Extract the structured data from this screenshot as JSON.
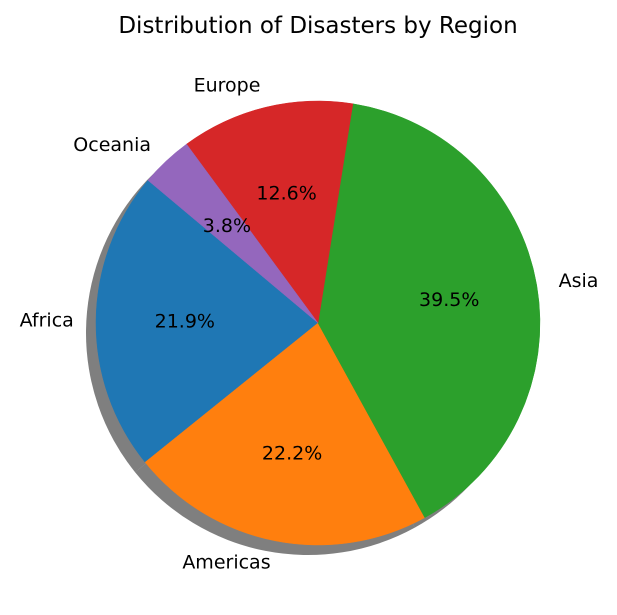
{
  "chart_data": {
    "type": "pie",
    "title": "Distribution of Disasters by Region",
    "categories": [
      "Africa",
      "Americas",
      "Asia",
      "Europe",
      "Oceania"
    ],
    "values": [
      21.9,
      22.2,
      39.5,
      12.6,
      3.8
    ],
    "value_labels": [
      "21.9%",
      "22.2%",
      "39.5%",
      "12.6%",
      "3.8%"
    ],
    "colors": [
      "#1f77b4",
      "#ff7f0e",
      "#2ca02c",
      "#d62728",
      "#9467bd"
    ],
    "start_angle_degrees": 140,
    "direction": "counterclockwise",
    "shadow": true,
    "legend": "none"
  }
}
